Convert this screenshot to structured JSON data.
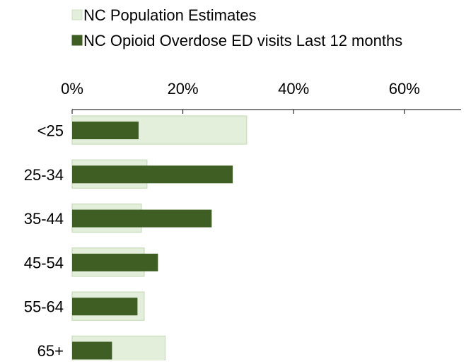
{
  "chart_data": {
    "type": "bar",
    "orientation": "horizontal",
    "categories": [
      "<25",
      "25-34",
      "35-44",
      "45-54",
      "55-64",
      "65+"
    ],
    "series": [
      {
        "name": "NC Population Estimates",
        "values": [
          31.5,
          13.5,
          12.5,
          13.0,
          13.0,
          16.8
        ],
        "color": "#e3eedb"
      },
      {
        "name": "NC Opioid Overdose ED visits Last 12 months",
        "values": [
          12.0,
          29.0,
          25.2,
          15.5,
          11.8,
          7.2
        ],
        "color": "#3f5e23"
      }
    ],
    "x_ticks": [
      "0%",
      "20%",
      "40%",
      "60%"
    ],
    "xlim": [
      0,
      70
    ],
    "legend_position": "top",
    "grid": false,
    "title": "",
    "xlabel": "",
    "ylabel": ""
  }
}
